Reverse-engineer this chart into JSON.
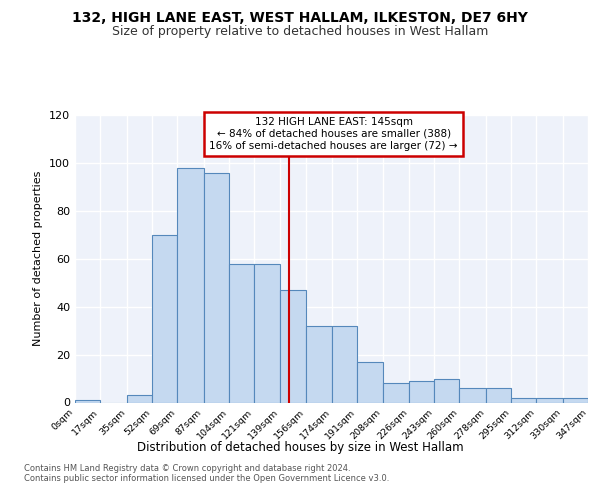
{
  "title": "132, HIGH LANE EAST, WEST HALLAM, ILKESTON, DE7 6HY",
  "subtitle": "Size of property relative to detached houses in West Hallam",
  "xlabel": "Distribution of detached houses by size in West Hallam",
  "ylabel": "Number of detached properties",
  "bin_edges": [
    0,
    17,
    35,
    52,
    69,
    87,
    104,
    121,
    139,
    156,
    174,
    191,
    208,
    226,
    243,
    260,
    278,
    295,
    312,
    330,
    347
  ],
  "bar_heights": [
    1,
    0,
    3,
    70,
    98,
    96,
    58,
    58,
    47,
    32,
    32,
    17,
    8,
    9,
    10,
    6,
    6,
    2,
    2,
    2
  ],
  "ylim": [
    0,
    120
  ],
  "yticks": [
    0,
    20,
    40,
    60,
    80,
    100,
    120
  ],
  "bar_color": "#c5d9f0",
  "bar_edge_color": "#5588bb",
  "bg_color": "#eef2fa",
  "grid_color": "#ffffff",
  "vline_x": 145,
  "vline_color": "#cc0000",
  "annotation_text": "132 HIGH LANE EAST: 145sqm\n← 84% of detached houses are smaller (388)\n16% of semi-detached houses are larger (72) →",
  "box_edge_color": "#cc0000",
  "footer": "Contains HM Land Registry data © Crown copyright and database right 2024.\nContains public sector information licensed under the Open Government Licence v3.0.",
  "xtick_labels": [
    "0sqm",
    "17sqm",
    "35sqm",
    "52sqm",
    "69sqm",
    "87sqm",
    "104sqm",
    "121sqm",
    "139sqm",
    "156sqm",
    "174sqm",
    "191sqm",
    "208sqm",
    "226sqm",
    "243sqm",
    "260sqm",
    "278sqm",
    "295sqm",
    "312sqm",
    "330sqm",
    "347sqm"
  ]
}
